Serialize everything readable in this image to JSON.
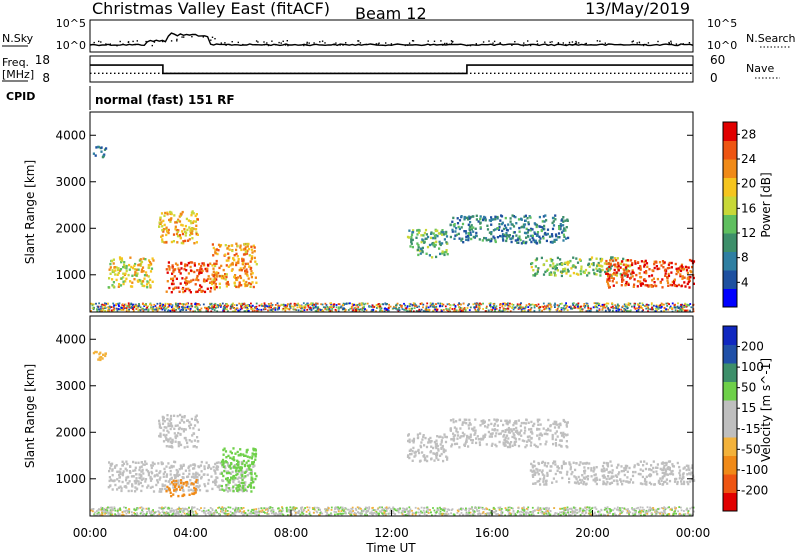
{
  "header": {
    "radar": "Christmas Valley East (fitACF)",
    "beam": "Beam 12",
    "date": "13/May/2019"
  },
  "side_labels": {
    "nsky": "N.Sky",
    "nsearch": "N.Search",
    "freq_line1": "Freq.",
    "freq_line2": "[MHz]",
    "nave": "Nave",
    "cpid": "CPID"
  },
  "cpid_text": "normal (fast) 151 RF",
  "colors": {
    "power_scale": [
      "#0000ff",
      "#1e50a0",
      "#2f7fa2",
      "#3d8f6a",
      "#5fbf5f",
      "#c8d838",
      "#f5c51f",
      "#f08a18",
      "#ee5512",
      "#e10000"
    ],
    "velocity_scale": [
      "#e10000",
      "#ee5512",
      "#f08a18",
      "#f3b23b",
      "#bfbfbf",
      "#bfbfbf",
      "#6ed049",
      "#3d8f6a",
      "#2050a8",
      "#1028c0"
    ]
  },
  "chart_data": [
    {
      "type": "line",
      "panel": "noise",
      "left_axis": {
        "label": "N.Sky",
        "ticks": [
          "10^5",
          "10^0"
        ]
      },
      "right_axis": {
        "label": "N.Search",
        "ticks": [
          "10^5",
          "10^0"
        ]
      },
      "xlim_hours": [
        0,
        24
      ]
    },
    {
      "type": "line",
      "panel": "frequency / nave",
      "left_axis": {
        "label": "Freq. [MHz]",
        "ticks": [
          18,
          8
        ]
      },
      "right_axis": {
        "label": "Nave",
        "ticks": [
          60,
          0
        ]
      },
      "series": [
        {
          "name": "Freq.",
          "x_hours": [
            0,
            2.9,
            2.9,
            15.0,
            15.0,
            24
          ],
          "values": [
            14.5,
            14.5,
            11.3,
            11.3,
            14.5,
            14.5
          ]
        }
      ],
      "nave_dotted_level": 20
    },
    {
      "type": "heatmap",
      "panel": "power",
      "ylabel": "Slant Range [km]",
      "yticks": [
        1000,
        2000,
        3000,
        4000
      ],
      "ylim": [
        200,
        4500
      ],
      "xlim_hours": [
        0,
        24
      ],
      "colorbar": {
        "label": "Power [dB]",
        "ticks": [
          4,
          8,
          12,
          16,
          20,
          24,
          28
        ],
        "range": [
          0,
          30
        ]
      },
      "regions": [
        {
          "t": [
            0.1,
            0.6
          ],
          "r": [
            3550,
            3800
          ],
          "value": 8
        },
        {
          "t": [
            0.7,
            2.5
          ],
          "r": [
            750,
            1400
          ],
          "value": 18
        },
        {
          "t": [
            2.7,
            4.3
          ],
          "r": [
            1700,
            2400
          ],
          "value": 20
        },
        {
          "t": [
            3.0,
            5.0
          ],
          "r": [
            650,
            1300
          ],
          "value": 26
        },
        {
          "t": [
            4.8,
            6.6
          ],
          "r": [
            750,
            1700
          ],
          "value": 22
        },
        {
          "t": [
            12.6,
            14.2
          ],
          "r": [
            1400,
            2000
          ],
          "value": 12
        },
        {
          "t": [
            14.3,
            19.0
          ],
          "r": [
            1700,
            2300
          ],
          "value": 8
        },
        {
          "t": [
            17.5,
            21.5
          ],
          "r": [
            1000,
            1400
          ],
          "value": 14
        },
        {
          "t": [
            20.5,
            24.0
          ],
          "r": [
            750,
            1350
          ],
          "value": 26
        }
      ]
    },
    {
      "type": "heatmap",
      "panel": "velocity",
      "ylabel": "Slant Range [km]",
      "yticks": [
        1000,
        2000,
        3000,
        4000
      ],
      "ylim": [
        200,
        4500
      ],
      "xlim_hours": [
        0,
        24
      ],
      "colorbar": {
        "label": "Velocity [m s^-1]",
        "ticks": [
          200,
          100,
          50,
          15,
          -15,
          -50,
          -100,
          -200
        ]
      },
      "regions": [
        {
          "t": [
            0.1,
            0.6
          ],
          "r": [
            3550,
            3800
          ],
          "value": -40
        },
        {
          "t": [
            0.7,
            6.5
          ],
          "r": [
            750,
            1400
          ],
          "value": 0
        },
        {
          "t": [
            2.7,
            4.3
          ],
          "r": [
            1700,
            2400
          ],
          "value": 0
        },
        {
          "t": [
            3.0,
            4.2
          ],
          "r": [
            650,
            1000
          ],
          "value": -60
        },
        {
          "t": [
            5.2,
            6.6
          ],
          "r": [
            750,
            1700
          ],
          "value": 30
        },
        {
          "t": [
            12.6,
            14.2
          ],
          "r": [
            1400,
            2000
          ],
          "value": 0
        },
        {
          "t": [
            14.3,
            19.0
          ],
          "r": [
            1700,
            2300
          ],
          "value": 0
        },
        {
          "t": [
            17.5,
            24.0
          ],
          "r": [
            900,
            1400
          ],
          "value": 0
        }
      ]
    }
  ],
  "time_axis": {
    "label": "Time UT",
    "ticks": [
      "00:00",
      "04:00",
      "08:00",
      "12:00",
      "16:00",
      "20:00",
      "00:00"
    ]
  }
}
